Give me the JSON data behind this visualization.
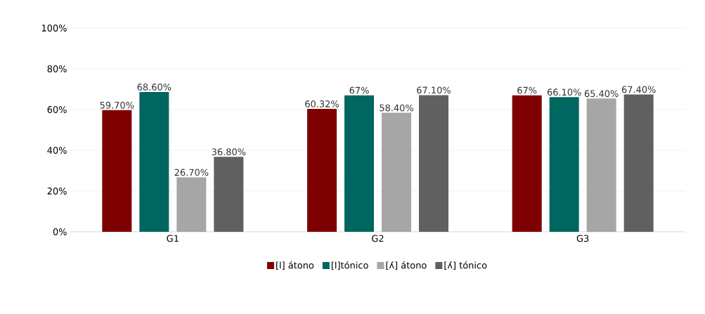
{
  "chart_data": {
    "type": "bar",
    "categories": [
      "G1",
      "G2",
      "G3"
    ],
    "series": [
      {
        "name": "[l] átono",
        "color": "#7f0000",
        "values": [
          59.7,
          60.32,
          67
        ],
        "value_labels": [
          "59.70%",
          "60.32%",
          "67%"
        ]
      },
      {
        "name": "[l]tónico",
        "color": "#006660",
        "values": [
          68.6,
          67,
          66.1
        ],
        "value_labels": [
          "68.60%",
          "67%",
          "66.10%"
        ]
      },
      {
        "name": "[ʎ] átono",
        "color": "#a6a6a6",
        "values": [
          26.7,
          58.4,
          65.4
        ],
        "value_labels": [
          "26.70%",
          "58.40%",
          "65.40%"
        ]
      },
      {
        "name": "[ʎ] tónico",
        "color": "#606060",
        "values": [
          36.8,
          67.1,
          67.4
        ],
        "value_labels": [
          "36.80%",
          "67.10%",
          "67.40%"
        ]
      }
    ],
    "ylim": [
      0,
      100
    ],
    "yticks": [
      {
        "value": 0,
        "label": "0%"
      },
      {
        "value": 20,
        "label": "20%"
      },
      {
        "value": 40,
        "label": "40%"
      },
      {
        "value": 60,
        "label": "60%"
      },
      {
        "value": 80,
        "label": "80%"
      },
      {
        "value": 100,
        "label": "100%"
      }
    ],
    "grid": "y",
    "legend": "bottom"
  }
}
